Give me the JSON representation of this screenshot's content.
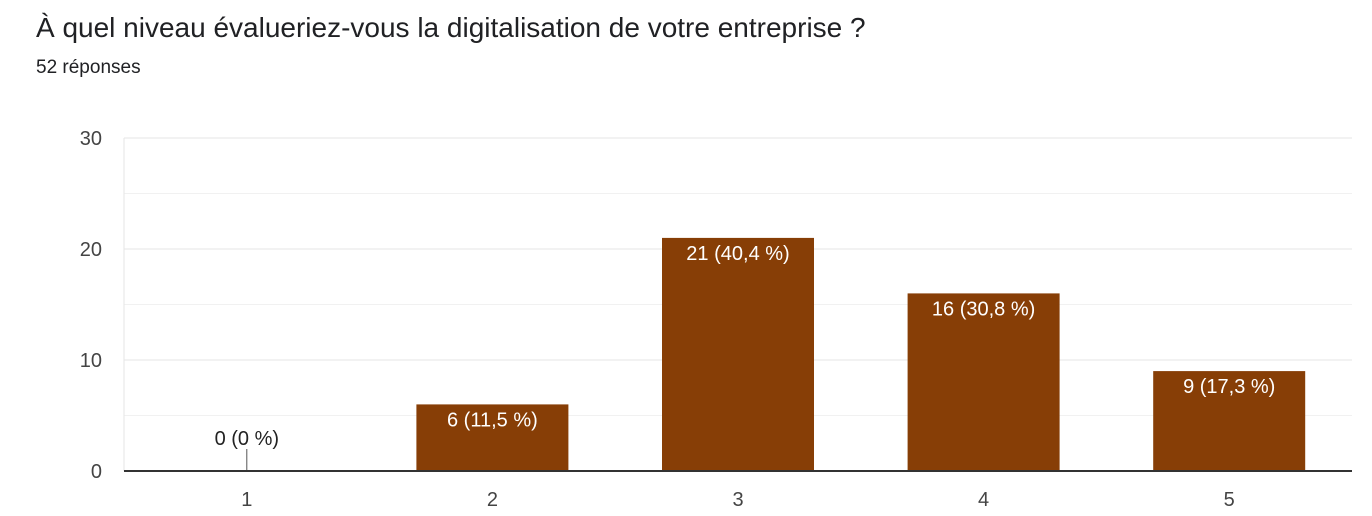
{
  "header": {
    "question": "À quel niveau évalueriez-vous la digitalisation de votre entreprise ?",
    "responses": "52 réponses"
  },
  "colors": {
    "bar": "#873e06",
    "grid": "#e6e6e6",
    "axis": "#333333",
    "label_inside": "#ffffff",
    "label_outside": "#222222"
  },
  "chart_data": {
    "type": "bar",
    "title": "À quel niveau évalueriez-vous la digitalisation de votre entreprise ?",
    "categories": [
      "1",
      "2",
      "3",
      "4",
      "5"
    ],
    "values": [
      0,
      6,
      21,
      16,
      9
    ],
    "data_labels": [
      "0 (0 %)",
      "6 (11,5 %)",
      "21 (40,4 %)",
      "16 (30,8 %)",
      "9 (17,3 %)"
    ],
    "yticks": [
      0,
      10,
      20,
      30
    ],
    "ylim": [
      0,
      30
    ],
    "xlabel": "",
    "ylabel": "",
    "grid": true,
    "legend": "none"
  }
}
